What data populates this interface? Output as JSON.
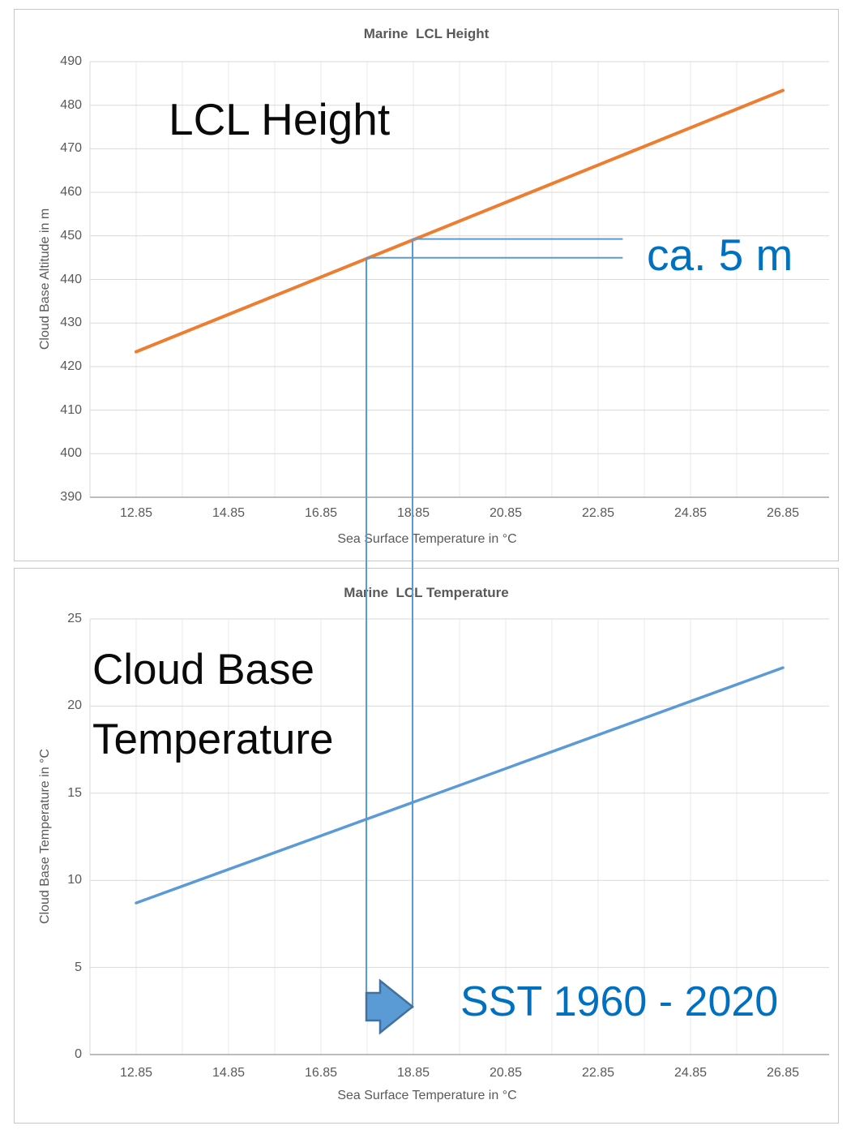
{
  "page": {
    "background": "#FFFFFF",
    "panel_border": "#C6C6C6"
  },
  "colors": {
    "title_gray": "#595959",
    "tick_gray": "#595959",
    "grid_major": "#D9D9D9",
    "grid_minor": "#E9E9E9",
    "axis_line": "#A6A6A6",
    "orange_series": "#ED7D31",
    "blue_series": "#5B9BD5",
    "connector_blue": "#5B9BD5",
    "annotation_blue": "#0070C0",
    "annotation_black": "#0A0A0A",
    "arrow_fill": "#5B9BD5",
    "arrow_stroke": "#41719C"
  },
  "connectors": {
    "x_values": [
      17.85,
      18.85
    ],
    "top_chart_y_values": [
      444.8,
      449.1
    ],
    "h_line_end_x_value": 23.4
  },
  "chart_data": [
    {
      "type": "line",
      "title": "Marine  LCL Height",
      "xlabel": "Sea Surface Temperature in °C",
      "ylabel": "Cloud Base Altitude in m",
      "xlim": [
        11.85,
        27.85
      ],
      "ylim": [
        390,
        490
      ],
      "x_ticks": [
        12.85,
        14.85,
        16.85,
        18.85,
        20.85,
        22.85,
        24.85,
        26.85
      ],
      "y_ticks": [
        490,
        480,
        470,
        460,
        450,
        440,
        430,
        420,
        410,
        400,
        390
      ],
      "grid_x_step": 1.0,
      "legend": "none",
      "series": [
        {
          "name": "LCL Height",
          "color": "#ED7D31",
          "stroke_width": 4,
          "points": [
            [
              12.85,
              423.4
            ],
            [
              26.85,
              483.4
            ]
          ]
        }
      ],
      "annotations": {
        "big_label": "LCL Height",
        "delta_label": "ca. 5 m"
      }
    },
    {
      "type": "line",
      "title": "Marine  LCL Temperature",
      "xlabel": "Sea Surface Temperature in °C",
      "ylabel": "Cloud Base Temperature in °C",
      "xlim": [
        11.85,
        27.85
      ],
      "ylim": [
        0,
        25
      ],
      "x_ticks": [
        12.85,
        14.85,
        16.85,
        18.85,
        20.85,
        22.85,
        24.85,
        26.85
      ],
      "y_ticks": [
        25,
        20,
        15,
        10,
        5,
        0
      ],
      "grid_x_step": 1.0,
      "legend": "none",
      "series": [
        {
          "name": "Cloud Base Temperature",
          "color": "#5B9BD5",
          "stroke_width": 3.5,
          "points": [
            [
              12.85,
              8.7
            ],
            [
              26.85,
              22.2
            ]
          ]
        }
      ],
      "annotations": {
        "big_label_line1": "Cloud Base",
        "big_label_line2": "Temperature",
        "arrow_label": "SST 1960 - 2020"
      }
    }
  ]
}
